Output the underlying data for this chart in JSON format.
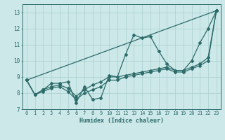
{
  "xlabel": "Humidex (Indice chaleur)",
  "bg_color": "#cce8e8",
  "line_color": "#2d6b6b",
  "grid_color": "#aacfcf",
  "xlim": [
    -0.5,
    23.5
  ],
  "ylim": [
    7,
    13.5
  ],
  "xticks": [
    0,
    1,
    2,
    3,
    4,
    5,
    6,
    7,
    8,
    9,
    10,
    11,
    12,
    13,
    14,
    15,
    16,
    17,
    18,
    19,
    20,
    21,
    22,
    23
  ],
  "yticks": [
    7,
    8,
    9,
    10,
    11,
    12,
    13
  ],
  "series": [
    {
      "x": [
        0,
        1,
        2,
        3,
        4,
        5,
        6,
        7,
        8,
        9,
        10,
        11,
        12,
        13,
        14,
        15,
        16,
        17,
        18,
        19,
        20,
        21,
        22,
        23
      ],
      "y": [
        8.8,
        7.9,
        8.2,
        8.6,
        8.6,
        8.7,
        7.4,
        8.4,
        7.6,
        7.7,
        9.1,
        9.0,
        10.4,
        11.6,
        11.4,
        11.5,
        10.6,
        9.8,
        9.4,
        9.4,
        10.0,
        11.1,
        12.0,
        13.1
      ]
    },
    {
      "x": [
        0,
        23
      ],
      "y": [
        8.8,
        13.1
      ]
    },
    {
      "x": [
        0,
        1,
        2,
        3,
        4,
        5,
        6,
        7,
        8,
        9,
        10,
        11,
        12,
        13,
        14,
        15,
        16,
        17,
        18,
        19,
        20,
        21,
        22,
        23
      ],
      "y": [
        8.8,
        7.9,
        8.2,
        8.4,
        8.5,
        8.3,
        7.8,
        8.2,
        8.5,
        8.7,
        9.0,
        9.0,
        9.1,
        9.2,
        9.3,
        9.4,
        9.5,
        9.6,
        9.4,
        9.4,
        9.6,
        9.8,
        10.2,
        13.1
      ]
    },
    {
      "x": [
        0,
        1,
        2,
        3,
        4,
        5,
        6,
        7,
        8,
        9,
        10,
        11,
        12,
        13,
        14,
        15,
        16,
        17,
        18,
        19,
        20,
        21,
        22,
        23
      ],
      "y": [
        8.8,
        7.9,
        8.1,
        8.3,
        8.4,
        8.1,
        7.6,
        8.0,
        8.2,
        8.4,
        8.8,
        8.8,
        9.0,
        9.1,
        9.2,
        9.3,
        9.4,
        9.5,
        9.3,
        9.3,
        9.5,
        9.7,
        10.0,
        13.1
      ]
    }
  ],
  "marker": "D",
  "markersize": 2.0,
  "linewidth": 0.9
}
